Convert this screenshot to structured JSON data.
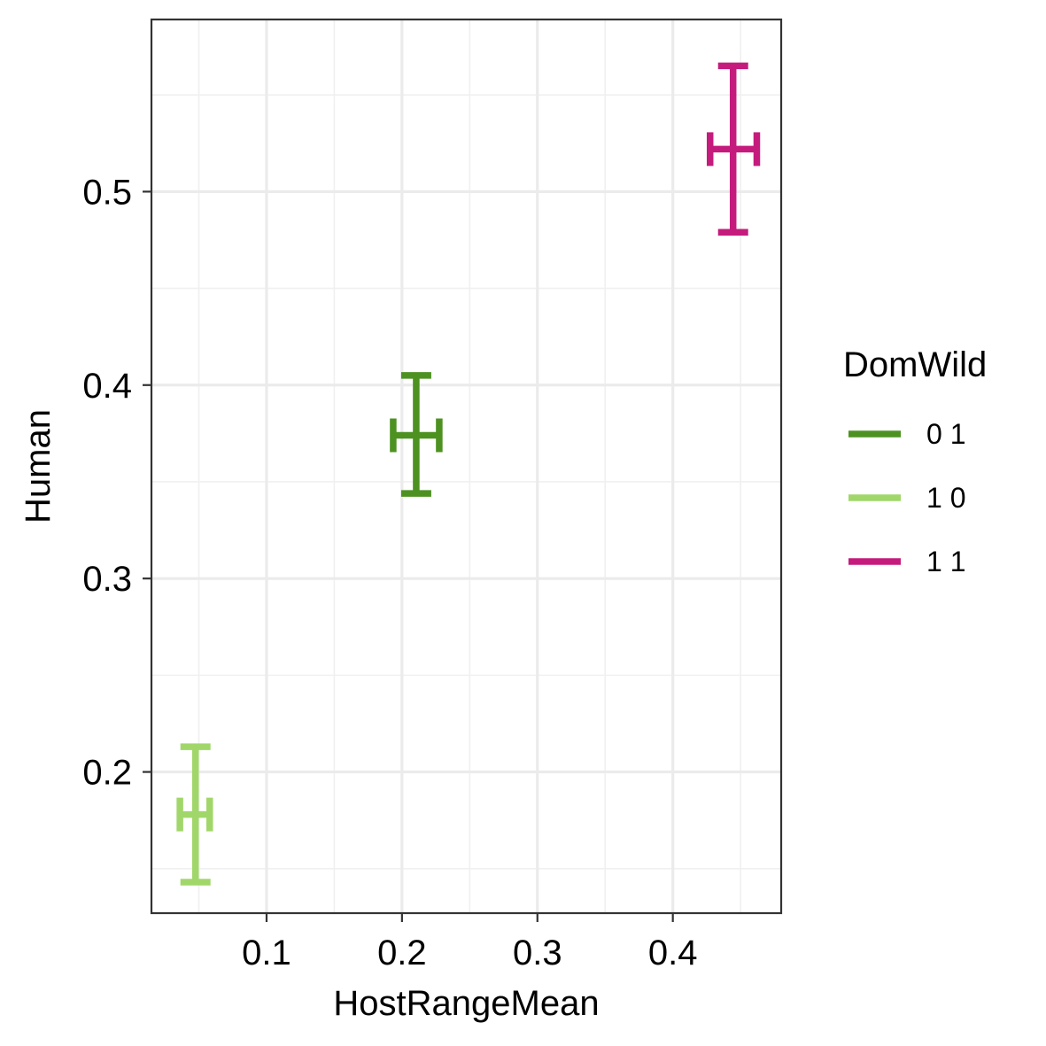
{
  "chart_data": {
    "type": "scatter",
    "title": "",
    "xlabel": "HostRangeMean",
    "ylabel": "Human",
    "xlim": [
      0.015,
      0.48
    ],
    "ylim": [
      0.127,
      0.589
    ],
    "x_ticks": [
      0.1,
      0.2,
      0.3,
      0.4
    ],
    "x_tick_labels": [
      "0.1",
      "0.2",
      "0.3",
      "0.4"
    ],
    "y_ticks": [
      0.2,
      0.3,
      0.4,
      0.5
    ],
    "y_tick_labels": [
      "0.2",
      "0.3",
      "0.4",
      "0.5"
    ],
    "grid": true,
    "legend": {
      "title": "DomWild",
      "position": "right"
    },
    "series": [
      {
        "name": "0 1",
        "color": "#4d9221",
        "x": 0.2105,
        "y": 0.374,
        "xmin": 0.1935,
        "xmax": 0.2275,
        "ymin": 0.344,
        "ymax": 0.405
      },
      {
        "name": "1 0",
        "color": "#a1d76a",
        "x": 0.0475,
        "y": 0.178,
        "xmin": 0.036,
        "xmax": 0.058,
        "ymin": 0.143,
        "ymax": 0.213
      },
      {
        "name": "1 1",
        "color": "#c51b7d",
        "x": 0.4445,
        "y": 0.522,
        "xmin": 0.4275,
        "xmax": 0.462,
        "ymin": 0.479,
        "ymax": 0.565
      }
    ]
  }
}
